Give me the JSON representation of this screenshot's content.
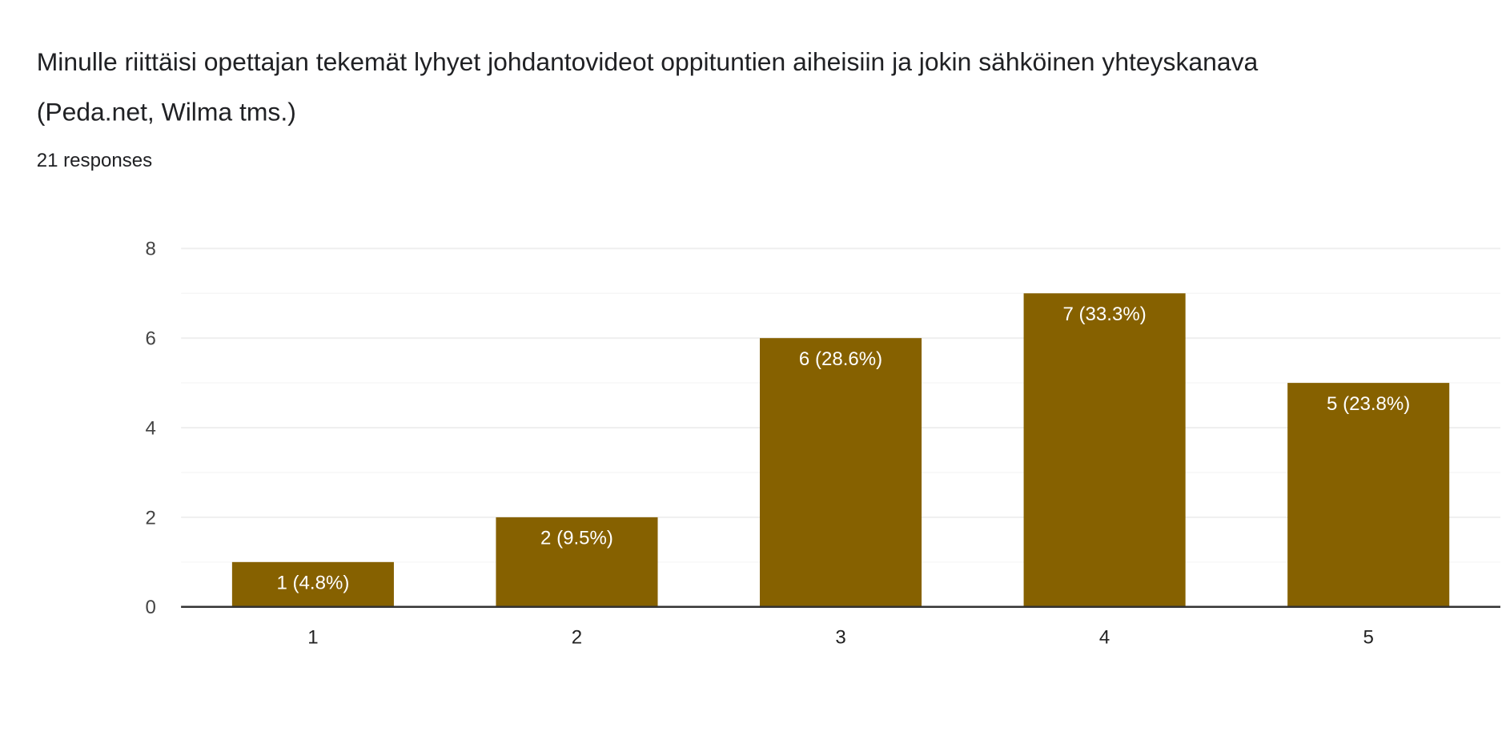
{
  "header": {
    "title": "Minulle riittäisi opettajan tekemät lyhyet johdantovideot oppituntien aiheisiin ja jokin sähköinen yhteyskanava (Peda.net, Wilma tms.)",
    "responses": "21 responses"
  },
  "chart_data": {
    "type": "bar",
    "title": "Minulle riittäisi opettajan tekemät lyhyet johdantovideot oppituntien aiheisiin ja jokin sähköinen yhteyskanava (Peda.net, Wilma tms.)",
    "categories": [
      "1",
      "2",
      "3",
      "4",
      "5"
    ],
    "values": [
      1,
      2,
      6,
      7,
      5
    ],
    "data_labels": [
      "1 (4.8%)",
      "2 (9.5%)",
      "6 (28.6%)",
      "7 (33.3%)",
      "5 (23.8%)"
    ],
    "yticks": [
      "0",
      "2",
      "4",
      "6",
      "8"
    ],
    "ylim": [
      0,
      8
    ],
    "xlabel": "",
    "ylabel": "",
    "grid": true,
    "bar_color": "#866100",
    "grid_color": "#eeeeee",
    "axis_color": "#333333"
  }
}
